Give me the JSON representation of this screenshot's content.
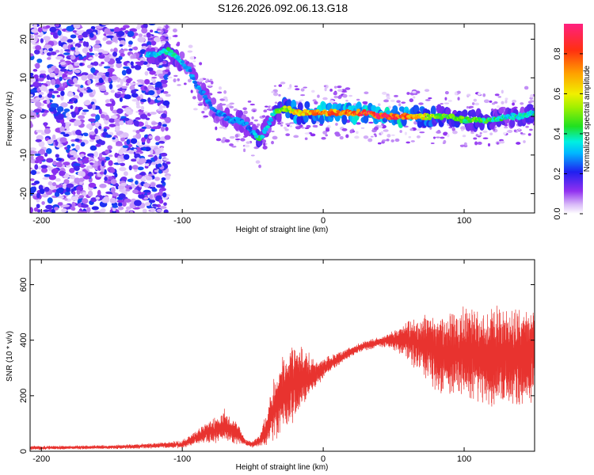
{
  "title": "S126.2026.092.06.13.G18",
  "colors": {
    "snr_line": "#e8332f",
    "axes": "#000000"
  },
  "chart_data": [
    {
      "type": "heatmap",
      "xlabel": "Height of straight line (km)",
      "ylabel": "Frequency (Hz)",
      "xlim": [
        -208,
        150
      ],
      "ylim": [
        -25,
        24
      ],
      "xticks": [
        -200,
        -100,
        0,
        100
      ],
      "yticks": [
        -20,
        -10,
        0,
        10,
        20
      ],
      "xtick_labels": [
        "-200",
        "-100",
        "0",
        "100"
      ],
      "ytick_labels": [
        "-20",
        "-10",
        "0",
        "10",
        "20"
      ],
      "colorbar": {
        "label": "Normalized spectral amplitude",
        "range": [
          0.0,
          0.95
        ],
        "ticks": [
          0.0,
          0.2,
          0.4,
          0.6,
          0.8
        ],
        "tick_labels": [
          "0.0",
          "0.2",
          "0.4",
          "0.6",
          "0.8"
        ]
      },
      "ridge": {
        "x": [
          -120,
          -110,
          -100,
          -95,
          -90,
          -85,
          -80,
          -75,
          -70,
          -65,
          -60,
          -55,
          -50,
          -45,
          -40,
          -35,
          -30,
          -25,
          -20,
          -10,
          0,
          10,
          20,
          30,
          40,
          50,
          60,
          70,
          80,
          90,
          100,
          110,
          120,
          130,
          140,
          150
        ],
        "frequency": [
          16,
          17,
          14,
          12,
          8,
          6,
          3,
          1,
          0,
          -1,
          -1,
          -2,
          -4,
          -6,
          -3,
          1,
          2,
          2,
          1,
          1,
          1,
          1,
          1,
          1,
          0,
          0,
          0,
          0,
          0,
          0,
          -1,
          -1,
          -1,
          0,
          0,
          1
        ],
        "amplitude": [
          0.35,
          0.45,
          0.35,
          0.3,
          0.3,
          0.3,
          0.3,
          0.3,
          0.3,
          0.3,
          0.3,
          0.3,
          0.3,
          0.45,
          0.35,
          0.4,
          0.55,
          0.6,
          0.7,
          0.75,
          0.85,
          0.8,
          0.85,
          0.9,
          0.95,
          0.9,
          0.85,
          0.7,
          0.55,
          0.5,
          0.5,
          0.5,
          0.45,
          0.4,
          0.4,
          0.4
        ]
      }
    },
    {
      "type": "line",
      "xlabel": "Height of straight line (km)",
      "ylabel": "SNR (10 * v/v)",
      "xlim": [
        -208,
        150
      ],
      "ylim": [
        0,
        690
      ],
      "xticks": [
        -200,
        -100,
        0,
        100
      ],
      "yticks": [
        0,
        200,
        400,
        600
      ],
      "xtick_labels": [
        "-200",
        "-100",
        "0",
        "100"
      ],
      "ytick_labels": [
        "0",
        "200",
        "400",
        "600"
      ],
      "envelope": {
        "x": [
          -208,
          -150,
          -120,
          -100,
          -90,
          -80,
          -70,
          -60,
          -55,
          -50,
          -45,
          -40,
          -35,
          -30,
          -25,
          -20,
          -15,
          -10,
          -5,
          0,
          10,
          20,
          30,
          40,
          50,
          60,
          70,
          80,
          90,
          100,
          110,
          120,
          130,
          140,
          150
        ],
        "mean": [
          12,
          15,
          20,
          25,
          50,
          70,
          90,
          60,
          30,
          25,
          40,
          80,
          150,
          200,
          230,
          250,
          260,
          270,
          280,
          300,
          330,
          360,
          380,
          395,
          400,
          400,
          380,
          360,
          350,
          360,
          350,
          340,
          340,
          340,
          345
        ],
        "amp": [
          6,
          6,
          8,
          12,
          20,
          35,
          50,
          30,
          10,
          10,
          20,
          50,
          90,
          110,
          120,
          120,
          90,
          70,
          50,
          30,
          20,
          15,
          15,
          15,
          30,
          60,
          90,
          120,
          130,
          140,
          140,
          150,
          150,
          150,
          150
        ]
      }
    }
  ]
}
